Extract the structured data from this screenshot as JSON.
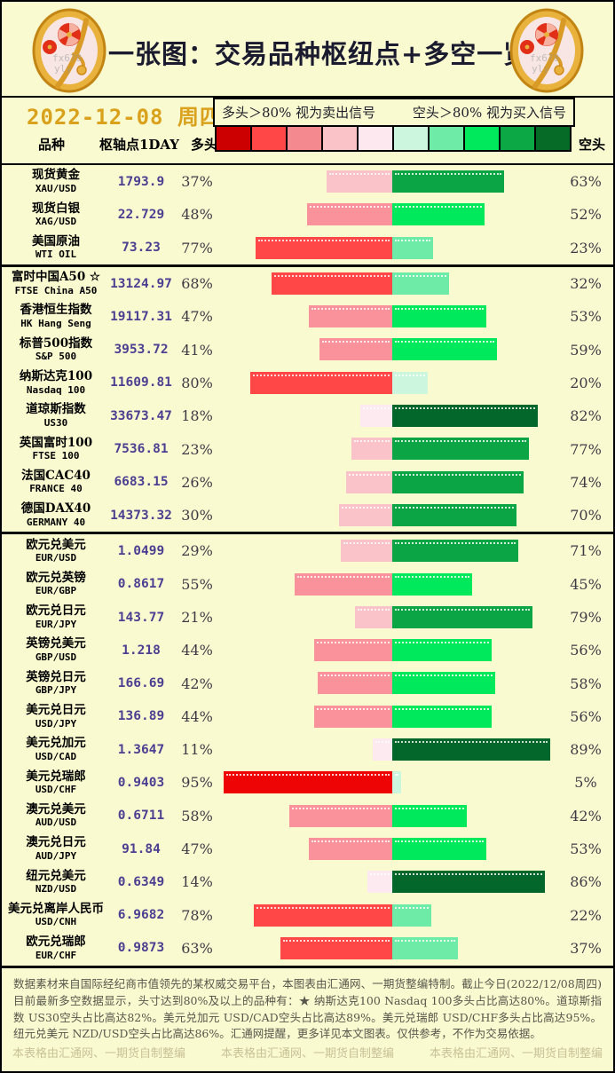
{
  "page": {
    "title": "一张图：交易品种枢纽点+多空一览",
    "date": "2022-12-08 周四",
    "signals": {
      "long_rule": "多头＞80% 视为卖出信号",
      "short_rule": "空头＞80% 视为买入信号"
    },
    "columns": {
      "instrument": "品种",
      "pivot": "枢轴点1DAY",
      "long": "多头",
      "short": "空头"
    },
    "footer": {
      "note": "数据素材来自国际经纪商市值领先的某权威交易平台，本图表由汇通网、一期货整编特制。截止今日(2022/12/08周四)目前最新多空数据显示，头寸达到80%及以上的品种有：★ 纳斯达克100 Nasdaq 100多头占比高达80%。道琼斯指数 US30空头占比高达82%。美元兑加元 USD/CAD空头占比高达89%。美元兑瑞郎 USD/CHF多头占比高达95%。纽元兑美元 NZD/USD空头占比高达86%。汇通网提醒，更多详见本文图表。仅供参考，不作为交易依据。",
      "watermark": "本表格由汇通网、一期货自制整编"
    },
    "colors": {
      "background": "#FAFAD0",
      "date_text": "#D9A11C",
      "pivot_text": "#4B3F92"
    }
  },
  "chart_data": {
    "type": "bar",
    "title": "交易品种枢纽点+多空一览",
    "unit": "%",
    "layout": "diverging horizontal bars, red = 多头(long) grows left, green = 空头(short) grows right, center axis at 50/50, approx 2px per 1%",
    "scale_colors": [
      "#CC0000",
      "#FF4747",
      "#F4898F",
      "#FAC3C8",
      "#FDE8EF",
      "#CDF6DE",
      "#6FEBA8",
      "#00E95C",
      "#0CA845",
      "#056B27"
    ],
    "bar_colors": {
      "long_buckets": [
        "#FDEAF1",
        "#FAC3CA",
        "#F9929B",
        "#FF4747",
        "#EE0404"
      ],
      "short_buckets": [
        "#CDF6DE",
        "#6FEBA8",
        "#00E95C",
        "#0CA546",
        "#03662B"
      ]
    },
    "groups": [
      {
        "rows": [
          {
            "name": "现货黄金",
            "code": "XAU/USD",
            "pivot": "1793.9",
            "long": 37,
            "short": 63
          },
          {
            "name": "现货白银",
            "code": "XAG/USD",
            "pivot": "22.729",
            "long": 48,
            "short": 52
          },
          {
            "name": "美国原油",
            "code": "WTI OIL",
            "pivot": "73.23",
            "long": 77,
            "short": 23
          }
        ]
      },
      {
        "rows": [
          {
            "name": "富时中国A50 ☆",
            "code": "FTSE China A50",
            "pivot": "13124.97",
            "long": 68,
            "short": 32
          },
          {
            "name": "香港恒生指数",
            "code": "HK Hang Seng",
            "pivot": "19117.31",
            "long": 47,
            "short": 53
          },
          {
            "name": "标普500指数",
            "code": "S&P 500",
            "pivot": "3953.72",
            "long": 41,
            "short": 59
          },
          {
            "name": "纳斯达克100",
            "code": "Nasdaq 100",
            "pivot": "11609.81",
            "long": 80,
            "short": 20
          },
          {
            "name": "道琼斯指数",
            "code": "US30",
            "pivot": "33673.47",
            "long": 18,
            "short": 82
          },
          {
            "name": "英国富时100",
            "code": "FTSE 100",
            "pivot": "7536.81",
            "long": 23,
            "short": 77
          },
          {
            "name": "法国CAC40",
            "code": "FRANCE 40",
            "pivot": "6683.15",
            "long": 26,
            "short": 74
          },
          {
            "name": "德国DAX40",
            "code": "GERMANY 40",
            "pivot": "14373.32",
            "long": 30,
            "short": 70
          }
        ]
      },
      {
        "rows": [
          {
            "name": "欧元兑美元",
            "code": "EUR/USD",
            "pivot": "1.0499",
            "long": 29,
            "short": 71
          },
          {
            "name": "欧元兑英镑",
            "code": "EUR/GBP",
            "pivot": "0.8617",
            "long": 55,
            "short": 45
          },
          {
            "name": "欧元兑日元",
            "code": "EUR/JPY",
            "pivot": "143.77",
            "long": 21,
            "short": 79
          },
          {
            "name": "英镑兑美元",
            "code": "GBP/USD",
            "pivot": "1.218",
            "long": 44,
            "short": 56
          },
          {
            "name": "英镑兑日元",
            "code": "GBP/JPY",
            "pivot": "166.69",
            "long": 42,
            "short": 58
          },
          {
            "name": "美元兑日元",
            "code": "USD/JPY",
            "pivot": "136.89",
            "long": 44,
            "short": 56
          },
          {
            "name": "美元兑加元",
            "code": "USD/CAD",
            "pivot": "1.3647",
            "long": 11,
            "short": 89
          },
          {
            "name": "美元兑瑞郎",
            "code": "USD/CHF",
            "pivot": "0.9403",
            "long": 95,
            "short": 5
          },
          {
            "name": "澳元兑美元",
            "code": "AUD/USD",
            "pivot": "0.6711",
            "long": 58,
            "short": 42
          },
          {
            "name": "澳元兑日元",
            "code": "AUD/JPY",
            "pivot": "91.84",
            "long": 47,
            "short": 53
          },
          {
            "name": "纽元兑美元",
            "code": "NZD/USD",
            "pivot": "0.6349",
            "long": 14,
            "short": 86
          },
          {
            "name": "美元兑离岸人民币",
            "code": "USD/CNH",
            "pivot": "6.9682",
            "long": 78,
            "short": 22
          },
          {
            "name": "欧元兑瑞郎",
            "code": "EUR/CHF",
            "pivot": "0.9873",
            "long": 63,
            "short": 37
          }
        ]
      }
    ]
  }
}
